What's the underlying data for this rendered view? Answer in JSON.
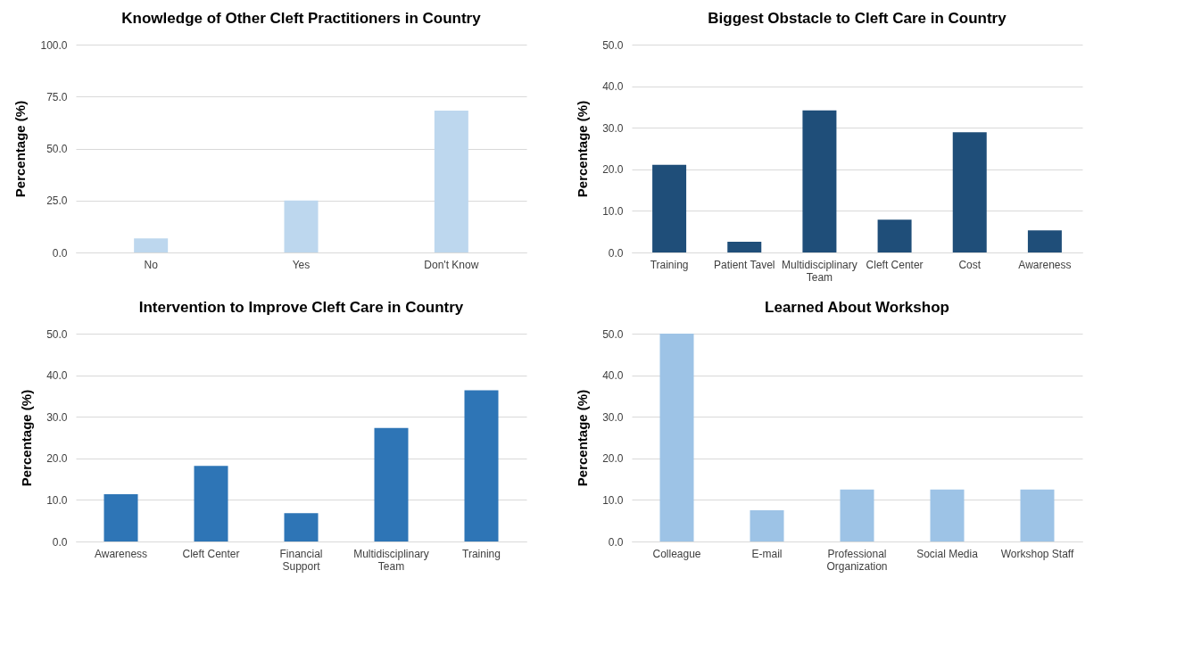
{
  "chart_data": [
    {
      "type": "bar",
      "title": "Knowledge of Other Cleft Practitioners in Country",
      "ylabel": "Percentage (%)",
      "categories": [
        "No",
        "Yes",
        "Don't Know"
      ],
      "values": [
        6.8,
        25.0,
        68.2
      ],
      "color": "#bdd7ee",
      "ylim": [
        0,
        100
      ],
      "yticks": [
        {
          "value": 0,
          "label": "0.0"
        },
        {
          "value": 25,
          "label": "25.0"
        },
        {
          "value": 50,
          "label": "50.0"
        },
        {
          "value": 75,
          "label": "75.0"
        },
        {
          "value": 100,
          "label": "100.0"
        }
      ],
      "grid": "y"
    },
    {
      "type": "bar",
      "title": "Biggest Obstacle to Cleft Care in Country",
      "ylabel": "Percentage (%)",
      "categories": [
        "Training",
        "Patient Tavel",
        "Multidisciplinary Team",
        "Cleft Center",
        "Cost",
        "Awareness"
      ],
      "values": [
        21.1,
        2.6,
        34.2,
        7.9,
        28.9,
        5.3
      ],
      "color": "#1f4e79",
      "ylim": [
        0,
        50
      ],
      "yticks": [
        {
          "value": 0,
          "label": "0.0"
        },
        {
          "value": 10,
          "label": "10.0"
        },
        {
          "value": 20,
          "label": "20.0"
        },
        {
          "value": 30,
          "label": "30.0"
        },
        {
          "value": 40,
          "label": "40.0"
        },
        {
          "value": 50,
          "label": "50.0"
        }
      ],
      "grid": "y"
    },
    {
      "type": "bar",
      "title": "Intervention to Improve Cleft Care in Country",
      "ylabel": "Percentage (%)",
      "categories": [
        "Awareness",
        "Cleft Center",
        "Financial Support",
        "Multidisciplinary Team",
        "Training"
      ],
      "values": [
        11.4,
        18.2,
        6.8,
        27.3,
        36.4
      ],
      "color": "#2e75b6",
      "ylim": [
        0,
        50
      ],
      "yticks": [
        {
          "value": 0,
          "label": "0.0"
        },
        {
          "value": 10,
          "label": "10.0"
        },
        {
          "value": 20,
          "label": "20.0"
        },
        {
          "value": 30,
          "label": "30.0"
        },
        {
          "value": 40,
          "label": "40.0"
        },
        {
          "value": 50,
          "label": "50.0"
        }
      ],
      "grid": "y"
    },
    {
      "type": "bar",
      "title": "Learned About Workshop",
      "ylabel": "Percentage (%)",
      "categories": [
        "Colleague",
        "E-mail",
        "Professional Organization",
        "Social Media",
        "Workshop Staff"
      ],
      "values": [
        50.0,
        7.5,
        12.5,
        12.5,
        12.5
      ],
      "color": "#9dc3e6",
      "ylim": [
        0,
        50
      ],
      "yticks": [
        {
          "value": 0,
          "label": "0.0"
        },
        {
          "value": 10,
          "label": "10.0"
        },
        {
          "value": 20,
          "label": "20.0"
        },
        {
          "value": 30,
          "label": "30.0"
        },
        {
          "value": 40,
          "label": "40.0"
        },
        {
          "value": 50,
          "label": "50.0"
        }
      ],
      "grid": "y"
    }
  ]
}
